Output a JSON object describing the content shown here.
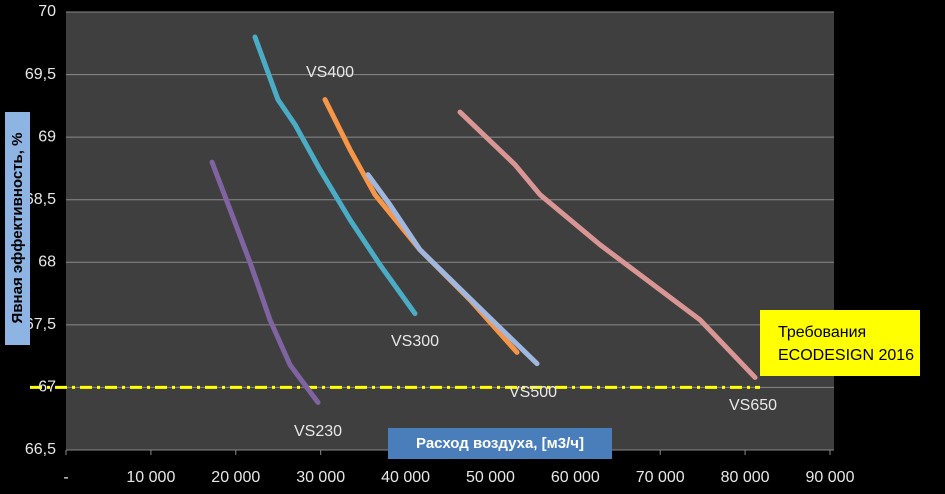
{
  "chart_data": {
    "type": "line",
    "x_label": "Расход воздуха, [м3/ч]",
    "y_label": "Явная эффективность, %",
    "xlim": [
      0,
      90000
    ],
    "xticks": [
      {
        "value": 0,
        "label": "-"
      },
      {
        "value": 10000,
        "label": "10 000"
      },
      {
        "value": 20000,
        "label": "20 000"
      },
      {
        "value": 30000,
        "label": "30 000"
      },
      {
        "value": 40000,
        "label": "40 000"
      },
      {
        "value": 50000,
        "label": "50 000"
      },
      {
        "value": 60000,
        "label": "60 000"
      },
      {
        "value": 70000,
        "label": "70 000"
      },
      {
        "value": 80000,
        "label": "80 000"
      },
      {
        "value": 90000,
        "label": "90 000"
      }
    ],
    "ylim": [
      66.5,
      70
    ],
    "yticks": [
      {
        "value": 66.5,
        "label": "66,5"
      },
      67,
      {
        "value": 67.5,
        "label": "67,5"
      },
      68,
      {
        "value": 68.5,
        "label": "68,5"
      },
      69,
      {
        "value": 69.5,
        "label": "69,5"
      },
      70
    ],
    "grid": true,
    "threshold": 67,
    "threshold_color": "#ffff00",
    "annotation": [
      "Требования",
      "ECODESIGN 2016"
    ],
    "series": [
      {
        "name": "VS230",
        "color": "#8064a2",
        "x": [
          17200,
          19560,
          21670,
          24030,
          26390,
          29690
        ],
        "values": [
          68.8,
          68.38,
          68.0,
          67.54,
          67.18,
          66.88
        ]
      },
      {
        "name": "VS300",
        "color": "#4bacc6",
        "x": [
          22260,
          24970,
          26980,
          29920,
          33460,
          36990,
          41110
        ],
        "values": [
          69.8,
          69.3,
          69.1,
          68.74,
          68.34,
          67.98,
          67.59
        ]
      },
      {
        "name": "VS400",
        "color": "#f79646",
        "x": [
          30510,
          33460,
          36400,
          41700,
          47590,
          53130
        ],
        "values": [
          69.3,
          68.9,
          68.54,
          68.1,
          67.7,
          67.28
        ]
      },
      {
        "name": "VS500",
        "color": "#a0b8e0",
        "x": [
          35580,
          38160,
          41700,
          47590,
          55490
        ],
        "values": [
          68.7,
          68.46,
          68.1,
          67.71,
          67.19
        ]
      },
      {
        "name": "VS650",
        "color": "#d99694",
        "x": [
          46410,
          52890,
          55840,
          62910,
          74690,
          81170
        ],
        "values": [
          69.2,
          68.78,
          68.54,
          68.14,
          67.54,
          67.08
        ]
      }
    ]
  }
}
